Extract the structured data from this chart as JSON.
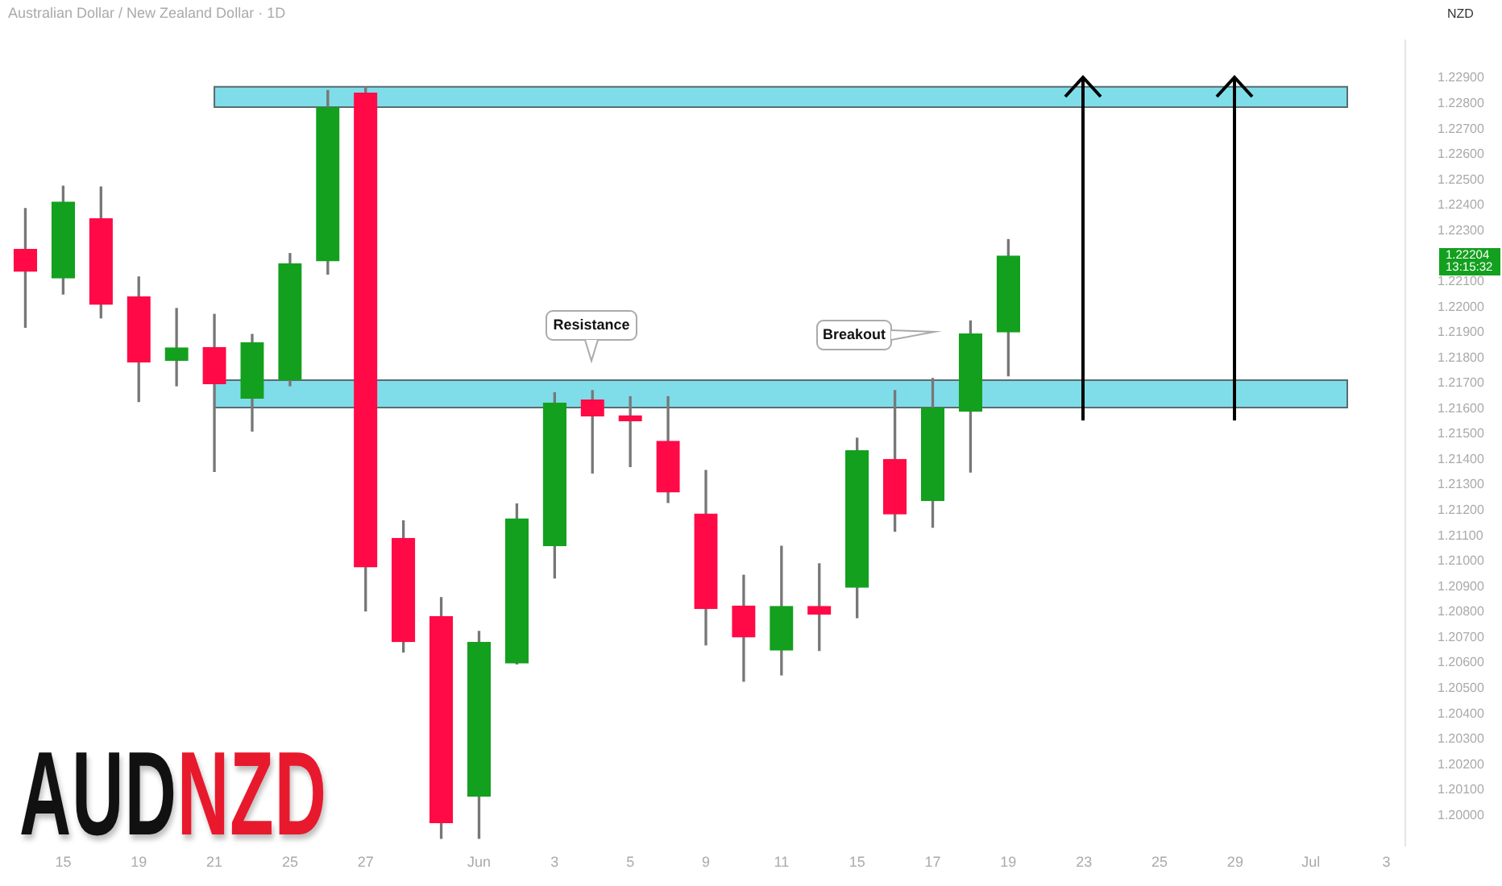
{
  "chart_data": {
    "type": "candlestick",
    "title": "AUDNZD",
    "subtitle": "Australian Dollar / New Zealand Dollar · 1D",
    "ylabel": "NZD",
    "categories": [
      null,
      "15",
      null,
      "19",
      null,
      "21",
      null,
      "25",
      null,
      "27",
      null,
      null,
      "Jun",
      null,
      "3",
      null,
      "5",
      null,
      "9",
      null,
      "11",
      null,
      "15",
      null,
      "17",
      null,
      "19",
      null,
      "23",
      null,
      "25",
      null,
      "29",
      null,
      "Jul",
      null,
      "3"
    ],
    "ohlc": [
      [
        1.22226,
        1.22387,
        1.2192,
        1.2214
      ],
      [
        1.22114,
        1.22475,
        1.22051,
        1.22412
      ],
      [
        1.22347,
        1.22472,
        1.21957,
        1.2201
      ],
      [
        1.22039,
        1.22118,
        1.21628,
        1.21784
      ],
      [
        1.2179,
        1.21994,
        1.2169,
        1.21839
      ],
      [
        1.21841,
        1.21971,
        1.21353,
        1.21698
      ],
      [
        1.21641,
        1.21892,
        1.21512,
        1.21859
      ],
      [
        1.21714,
        1.2221,
        1.2169,
        1.22169
      ],
      [
        1.22181,
        1.22851,
        1.22129,
        1.22784
      ],
      [
        1.22841,
        1.22865,
        1.20804,
        1.20978
      ],
      [
        1.2109,
        1.21159,
        1.20643,
        1.20684
      ],
      [
        1.20782,
        1.20857,
        1.1991,
        1.19972
      ],
      [
        1.20076,
        1.20724,
        1.1991,
        1.20681
      ],
      [
        1.206,
        1.21225,
        1.20596,
        1.21167
      ],
      [
        1.21061,
        1.21663,
        1.20934,
        1.21622
      ],
      [
        1.21634,
        1.21671,
        1.21347,
        1.21572
      ],
      [
        1.21572,
        1.21647,
        1.21372,
        1.21553
      ],
      [
        1.21472,
        1.21647,
        1.21231,
        1.21272
      ],
      [
        1.21186,
        1.21357,
        1.20671,
        1.20814
      ],
      [
        1.20824,
        1.20945,
        1.20528,
        1.20702
      ],
      [
        1.20651,
        1.21059,
        1.20553,
        1.20822
      ],
      [
        1.20822,
        1.2099,
        1.20649,
        1.20792
      ],
      [
        1.20898,
        1.21484,
        1.20778,
        1.21435
      ],
      [
        1.214,
        1.21671,
        1.21118,
        1.21186
      ],
      [
        1.21239,
        1.21719,
        1.21134,
        1.21602
      ],
      [
        1.2159,
        1.21945,
        1.21351,
        1.21894
      ],
      [
        1.21902,
        1.22265,
        1.21729,
        1.222
      ],
      null,
      null,
      null,
      null,
      null,
      null,
      null,
      null,
      null,
      null
    ],
    "colors": [
      "#ff0a47",
      "#13a01e",
      "#ff0a47",
      "#ff0a47",
      "#13a01e",
      "#ff0a47",
      "#13a01e",
      "#13a01e",
      "#13a01e",
      "#ff0a47",
      "#ff0a47",
      "#ff0a47",
      "#13a01e",
      "#13a01e",
      "#13a01e",
      "#ff0a47",
      "#ff0a47",
      "#ff0a47",
      "#ff0a47",
      "#ff0a47",
      "#13a01e",
      "#ff0a47",
      "#13a01e",
      "#ff0a47",
      "#13a01e",
      "#13a01e",
      "#13a01e",
      null,
      null,
      null,
      null,
      null,
      null,
      null,
      null,
      null,
      null
    ],
    "ylim": [
      1.1988,
      1.2305
    ],
    "yticks": [
      {
        "value": 1.2,
        "label": "1.20000"
      },
      {
        "value": 1.201,
        "label": "1.20100"
      },
      {
        "value": 1.202,
        "label": "1.20200"
      },
      {
        "value": 1.203,
        "label": "1.20300"
      },
      {
        "value": 1.204,
        "label": "1.20400"
      },
      {
        "value": 1.205,
        "label": "1.20500"
      },
      {
        "value": 1.206,
        "label": "1.20600"
      },
      {
        "value": 1.207,
        "label": "1.20700"
      },
      {
        "value": 1.208,
        "label": "1.20800"
      },
      {
        "value": 1.209,
        "label": "1.20900"
      },
      {
        "value": 1.21,
        "label": "1.21000"
      },
      {
        "value": 1.211,
        "label": "1.21100"
      },
      {
        "value": 1.212,
        "label": "1.21200"
      },
      {
        "value": 1.213,
        "label": "1.21300"
      },
      {
        "value": 1.214,
        "label": "1.21400"
      },
      {
        "value": 1.215,
        "label": "1.21500"
      },
      {
        "value": 1.216,
        "label": "1.21600"
      },
      {
        "value": 1.217,
        "label": "1.21700"
      },
      {
        "value": 1.218,
        "label": "1.21800"
      },
      {
        "value": 1.219,
        "label": "1.21900"
      },
      {
        "value": 1.22,
        "label": "1.22000"
      },
      {
        "value": 1.221,
        "label": "1.22100"
      },
      {
        "value": 1.223,
        "label": "1.22300"
      },
      {
        "value": 1.224,
        "label": "1.22400"
      },
      {
        "value": 1.225,
        "label": "1.22500"
      },
      {
        "value": 1.226,
        "label": "1.22600"
      },
      {
        "value": 1.227,
        "label": "1.22700"
      },
      {
        "value": 1.228,
        "label": "1.22800"
      },
      {
        "value": 1.229,
        "label": "1.22900"
      }
    ],
    "bands": [
      {
        "axis": "y",
        "from": 1.22786,
        "to": 1.22866,
        "color": "#7fdde9"
      },
      {
        "axis": "y",
        "from": 1.21604,
        "to": 1.21712,
        "color": "#7fdde9"
      }
    ],
    "annotations": [
      "Resistance",
      "Breakout",
      "1.22204",
      "13:15:32"
    ],
    "legend": false
  }
}
